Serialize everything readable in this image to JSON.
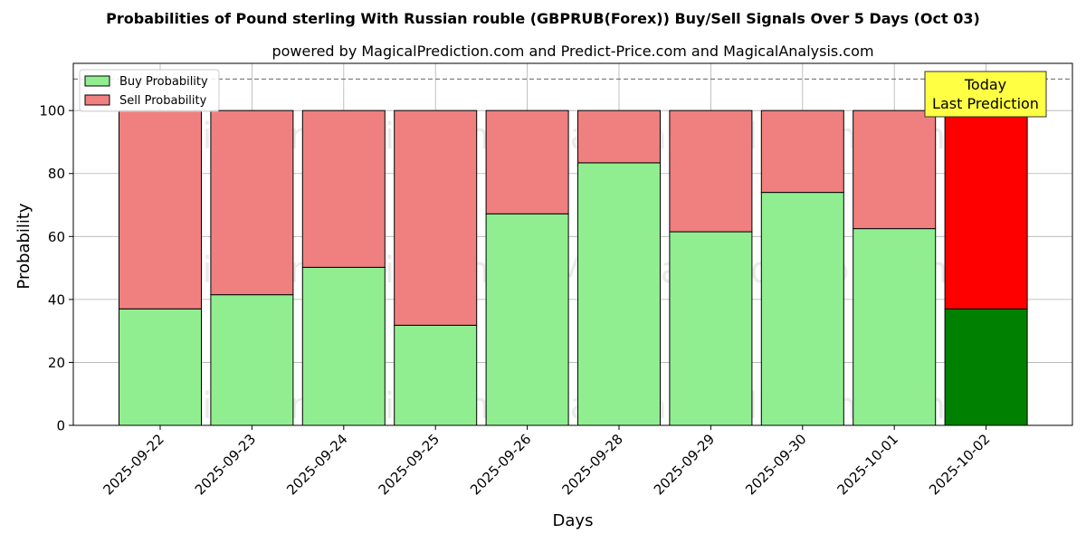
{
  "chart_data": {
    "type": "bar",
    "stacked": true,
    "title": "Probabilities of Pound sterling With Russian rouble (GBPRUB(Forex)) Buy/Sell Signals Over 5 Days (Oct 03)",
    "subtitle": "powered by MagicalPrediction.com and Predict-Price.com and MagicalAnalysis.com",
    "xlabel": "Days",
    "ylabel": "Probability",
    "ylim": [
      0,
      115
    ],
    "yticks": [
      0,
      20,
      40,
      60,
      80,
      100
    ],
    "grid": true,
    "legend_position": "top-left",
    "reference_line": 110,
    "categories": [
      "2025-09-22",
      "2025-09-23",
      "2025-09-24",
      "2025-09-25",
      "2025-09-26",
      "2025-09-28",
      "2025-09-29",
      "2025-09-30",
      "2025-10-01",
      "2025-10-02"
    ],
    "series": [
      {
        "name": "Buy Probability",
        "color": "#90ee90",
        "highlight_color": "#008000",
        "values": [
          37,
          41.5,
          50.2,
          31.8,
          67.2,
          83.4,
          61.5,
          74,
          62.5,
          37
        ]
      },
      {
        "name": "Sell Probability",
        "color": "#f08080",
        "highlight_color": "#ff0000",
        "values": [
          63,
          58.5,
          49.8,
          68.2,
          32.8,
          16.6,
          38.5,
          26,
          37.5,
          63
        ]
      }
    ],
    "highlight_index": 9,
    "annotation": {
      "lines": [
        "Today",
        "Last Prediction"
      ],
      "color": "#ffff44"
    },
    "watermarks": [
      "MagicalAnalysis.com",
      "MagicalPrediction.com",
      "MagicalAnalysis.com",
      "MagicalPrediction.com",
      "MagicalAnalysis.com",
      "MagicalPrediction.com"
    ]
  }
}
